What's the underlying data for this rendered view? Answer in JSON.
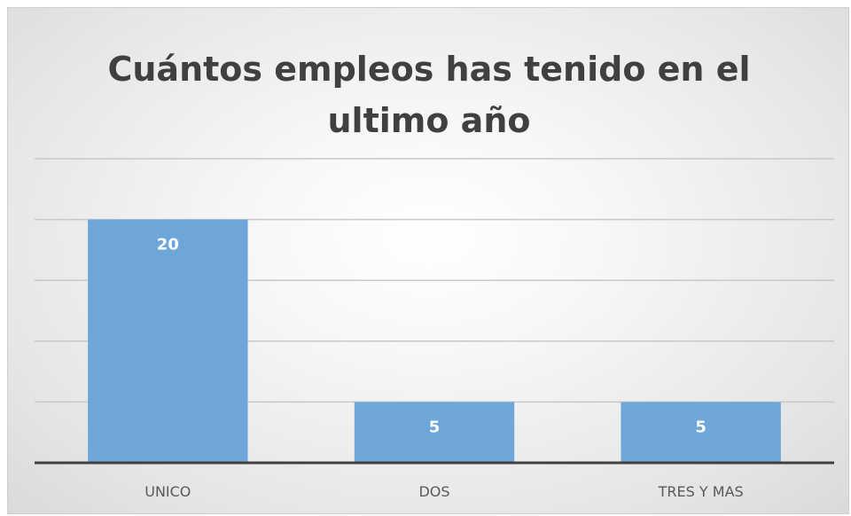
{
  "chart_data": {
    "type": "bar",
    "title_lines": [
      "Cuántos empleos has tenido en el",
      "ultimo año"
    ],
    "categories": [
      "UNICO",
      "DOS",
      "TRES Y MAS"
    ],
    "values": [
      20,
      5,
      5
    ],
    "ylim": [
      0,
      25
    ],
    "grid": true,
    "legend": "none",
    "bar_color": "#6fa6d9",
    "gridline_color": "#c8c8c8",
    "axis_color": "#404040"
  }
}
